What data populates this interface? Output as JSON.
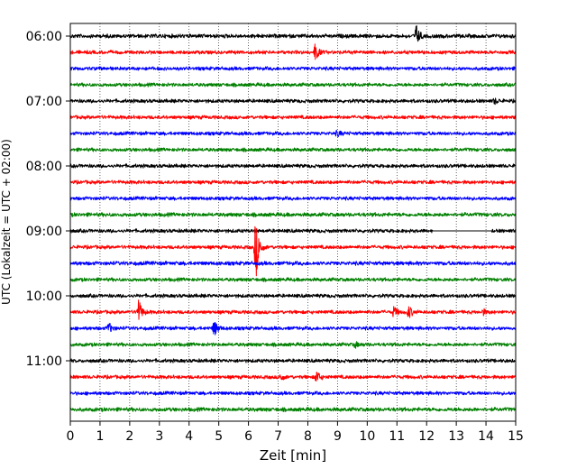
{
  "chart_data": {
    "type": "line",
    "xlabel": "Zeit  [min]",
    "ylabel": "UTC (Lokalzeit = UTC + 02:00)",
    "xlim": [
      0,
      15
    ],
    "x_ticks": [
      "0",
      "1",
      "2",
      "3",
      "4",
      "5",
      "6",
      "7",
      "8",
      "9",
      "10",
      "11",
      "12",
      "13",
      "14",
      "15"
    ],
    "y_tick_labels": [
      "06:00",
      "07:00",
      "08:00",
      "09:00",
      "10:00",
      "11:00"
    ],
    "trace_colors": [
      "#000000",
      "#ff0000",
      "#0000ff",
      "#008000"
    ],
    "grid": "vertical dotted",
    "traces": [
      {
        "start": "06:00",
        "amp": 2.2,
        "events": [
          {
            "t": 11.65,
            "a": 12
          }
        ]
      },
      {
        "start": "06:15",
        "amp": 2.0,
        "events": [
          {
            "t": 8.25,
            "a": 10
          }
        ]
      },
      {
        "start": "06:30",
        "amp": 2.0,
        "events": []
      },
      {
        "start": "06:45",
        "amp": 2.0,
        "events": []
      },
      {
        "start": "07:00",
        "amp": 2.0,
        "events": [
          {
            "t": 14.3,
            "a": 3
          }
        ]
      },
      {
        "start": "07:15",
        "amp": 2.0,
        "events": []
      },
      {
        "start": "07:30",
        "amp": 2.0,
        "events": [
          {
            "t": 9.0,
            "a": 3
          }
        ]
      },
      {
        "start": "07:45",
        "amp": 2.0,
        "events": []
      },
      {
        "start": "08:00",
        "amp": 2.0,
        "events": []
      },
      {
        "start": "08:15",
        "amp": 2.0,
        "events": []
      },
      {
        "start": "08:30",
        "amp": 2.0,
        "events": []
      },
      {
        "start": "08:45",
        "amp": 2.2,
        "events": []
      },
      {
        "start": "09:00",
        "amp": 2.0,
        "events": [],
        "flat": [
          12.2,
          14.2
        ]
      },
      {
        "start": "09:15",
        "amp": 2.0,
        "events": [
          {
            "t": 6.25,
            "a": 36
          }
        ]
      },
      {
        "start": "09:30",
        "amp": 2.2,
        "events": []
      },
      {
        "start": "09:45",
        "amp": 2.0,
        "events": []
      },
      {
        "start": "10:00",
        "amp": 2.0,
        "events": []
      },
      {
        "start": "10:15",
        "amp": 2.0,
        "events": [
          {
            "t": 2.3,
            "a": 14
          },
          {
            "t": 10.9,
            "a": 6
          },
          {
            "t": 11.4,
            "a": 7
          },
          {
            "t": 13.9,
            "a": 3
          }
        ]
      },
      {
        "start": "10:30",
        "amp": 2.0,
        "events": [
          {
            "t": 1.3,
            "a": 6
          },
          {
            "t": 4.85,
            "a": 9
          }
        ]
      },
      {
        "start": "10:45",
        "amp": 2.0,
        "events": [
          {
            "t": 9.6,
            "a": 3
          }
        ]
      },
      {
        "start": "11:00",
        "amp": 2.0,
        "events": []
      },
      {
        "start": "11:15",
        "amp": 2.0,
        "events": [
          {
            "t": 7.1,
            "a": 4
          },
          {
            "t": 8.3,
            "a": 7
          }
        ]
      },
      {
        "start": "11:30",
        "amp": 2.0,
        "events": []
      },
      {
        "start": "11:45",
        "amp": 2.2,
        "events": []
      }
    ]
  }
}
